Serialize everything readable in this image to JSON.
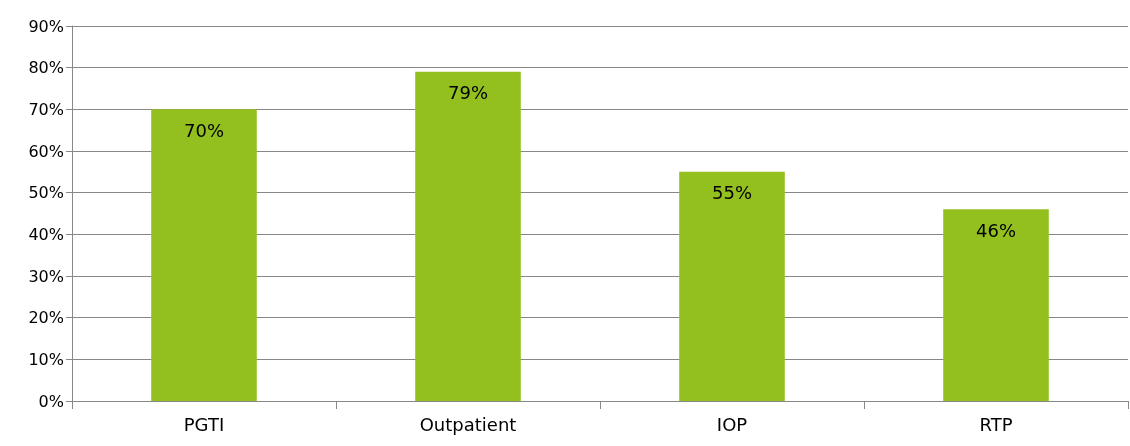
{
  "chart_data": {
    "type": "bar",
    "categories": [
      "PGTI",
      "Outpatient",
      "IOP",
      "RTP"
    ],
    "values": [
      70,
      79,
      55,
      46
    ],
    "value_labels": [
      "70%",
      "79%",
      "55%",
      "46%"
    ],
    "color": "#93c01f",
    "ylim": [
      0,
      90
    ],
    "yticks": [
      {
        "value": 0,
        "label": "0%"
      },
      {
        "value": 10,
        "label": "10%"
      },
      {
        "value": 20,
        "label": "20%"
      },
      {
        "value": 30,
        "label": "30%"
      },
      {
        "value": 40,
        "label": "40%"
      },
      {
        "value": 50,
        "label": "50%"
      },
      {
        "value": 60,
        "label": "60%"
      },
      {
        "value": 70,
        "label": "70%"
      },
      {
        "value": 80,
        "label": "80%"
      },
      {
        "value": 90,
        "label": "90%"
      }
    ],
    "grid": "y"
  }
}
